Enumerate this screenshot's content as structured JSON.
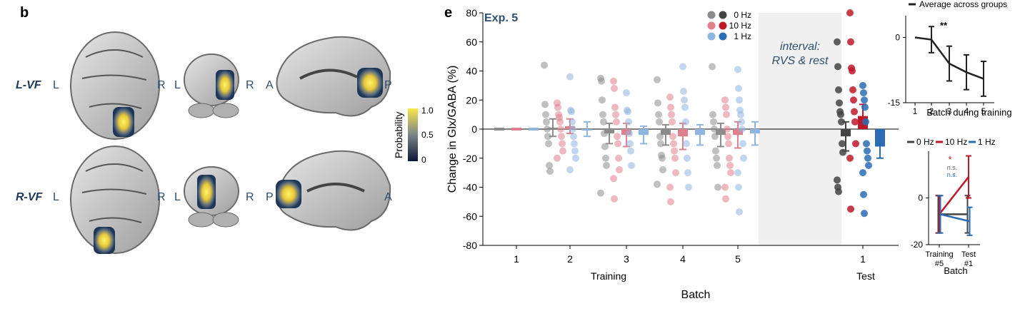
{
  "panel_b": {
    "label": "b",
    "rows": [
      {
        "condition": "L-VF",
        "axial": [
          "L",
          "R"
        ],
        "coronal": [
          "L",
          "R"
        ],
        "sagittal": [
          "A",
          "P"
        ]
      },
      {
        "condition": "R-VF",
        "axial": [
          "L",
          "R"
        ],
        "coronal": [
          "L",
          "R"
        ],
        "sagittal": [
          "P",
          "A"
        ]
      }
    ],
    "colorbar": {
      "title": "Probability",
      "ticks": [
        "1.0",
        "0.5",
        "0"
      ]
    }
  },
  "panel_e": {
    "label": "e",
    "experiment": "Exp. 5",
    "interval_label": [
      "interval:",
      "RVS & rest"
    ]
  },
  "chart_data": [
    {
      "type": "bar",
      "title": "Exp. 5",
      "ylabel": "Change in Glx/GABA (%)",
      "xlabel": "Batch",
      "ylim": [
        -80,
        80
      ],
      "yticks": [
        -80,
        -60,
        -40,
        -20,
        0,
        20,
        40,
        60,
        80
      ],
      "categories": [
        "1",
        "2",
        "3",
        "4",
        "5",
        "1"
      ],
      "group_labels": [
        "Training",
        "Test"
      ],
      "annotation": [
        "interval:",
        "RVS & rest"
      ],
      "legend": [
        "0 Hz",
        "10 Hz",
        "1 Hz"
      ],
      "colors": {
        "0 Hz": "#444444",
        "10 Hz": "#c0182b",
        "1 Hz": "#2a6db4",
        "0 Hz_train": "#8c8c8c",
        "10 Hz_train": "#e0808c",
        "1 Hz_train": "#8fb6e0"
      },
      "series": [
        {
          "name": "0 Hz",
          "values": [
            0,
            1,
            -3,
            -4,
            -4,
            -5
          ],
          "err": [
            0,
            6,
            7,
            7,
            8,
            10
          ],
          "points": [
            [],
            [
              44,
              17,
              10,
              5,
              0,
              -5,
              -10,
              -25,
              -29
            ],
            [
              35,
              33,
              20,
              10,
              5,
              -3,
              -12,
              -20,
              -25,
              -44
            ],
            [
              34,
              18,
              10,
              5,
              -5,
              -10,
              -18,
              -20,
              -28,
              -38
            ],
            [
              43,
              10,
              5,
              0,
              -5,
              -15,
              -20,
              -25,
              -40
            ],
            [
              60,
              43,
              27,
              18,
              12,
              10,
              5,
              -10,
              -16,
              -35,
              -40,
              -43
            ]
          ]
        },
        {
          "name": "10 Hz",
          "values": [
            0,
            2,
            -4,
            -5,
            -4,
            9
          ],
          "err": [
            0,
            5,
            8,
            9,
            9,
            8
          ],
          "points": [
            [],
            [
              18,
              15,
              10,
              8,
              5,
              0,
              -5,
              -10,
              -15,
              -20
            ],
            [
              33,
              28,
              15,
              10,
              5,
              -5,
              -10,
              -20,
              -28,
              -34,
              -48
            ],
            [
              22,
              15,
              10,
              5,
              -5,
              -10,
              -15,
              -20,
              -30,
              -40,
              -50
            ],
            [
              20,
              15,
              10,
              0,
              -5,
              -10,
              -20,
              -25,
              -30,
              -40,
              -48
            ],
            [
              80,
              60,
              42,
              40,
              27,
              20,
              12,
              5,
              -10,
              -20,
              -55
            ]
          ]
        },
        {
          "name": "1 Hz",
          "values": [
            0,
            0,
            -4,
            -4,
            -3,
            -12
          ],
          "err": [
            0,
            5,
            6,
            7,
            8,
            8
          ],
          "points": [
            [],
            [
              36,
              13,
              12,
              5,
              0,
              -5,
              -10,
              -15,
              -20,
              -28
            ],
            [
              25,
              13,
              12,
              5,
              -3,
              -10,
              -15,
              -25
            ],
            [
              43,
              26,
              20,
              15,
              5,
              -10,
              -20,
              -30,
              -40
            ],
            [
              41,
              28,
              20,
              13,
              10,
              5,
              0,
              -10,
              -20,
              -30,
              -40,
              -57
            ],
            [
              30,
              25,
              20,
              15,
              5,
              -10,
              -15,
              -20,
              -25,
              -30,
              -45,
              -58
            ]
          ]
        }
      ]
    },
    {
      "type": "line",
      "title": "Average across groups",
      "xlabel": "Batch during training",
      "categories": [
        "1",
        "2",
        "3",
        "4",
        "5"
      ],
      "series": [
        {
          "name": "Average across groups",
          "values": [
            0,
            -0.5,
            -6,
            -8,
            -9.5
          ],
          "err": [
            0,
            3,
            4,
            4,
            4
          ]
        }
      ],
      "ylim": [
        -15,
        5
      ],
      "yticks": [
        0,
        -15
      ],
      "annotation": "**"
    },
    {
      "type": "line",
      "xlabel": "Batch",
      "categories": [
        "Training #5",
        "Test #1"
      ],
      "xticks": [
        [
          "Training",
          "#5"
        ],
        [
          "Test",
          "#1"
        ]
      ],
      "legend": [
        "0 Hz",
        "10 Hz",
        "1 Hz"
      ],
      "series": [
        {
          "name": "0 Hz",
          "values": [
            -7,
            -7
          ],
          "err": [
            8,
            8
          ]
        },
        {
          "name": "10 Hz",
          "values": [
            -7,
            9
          ],
          "err": [
            8,
            9
          ]
        },
        {
          "name": "1 Hz",
          "values": [
            -7,
            -10
          ],
          "err": [
            8,
            6
          ]
        }
      ],
      "ylim": [
        -20,
        20
      ],
      "yticks": [
        0,
        -20
      ],
      "annotations": [
        "*",
        "n.s.",
        "n.s."
      ]
    }
  ]
}
